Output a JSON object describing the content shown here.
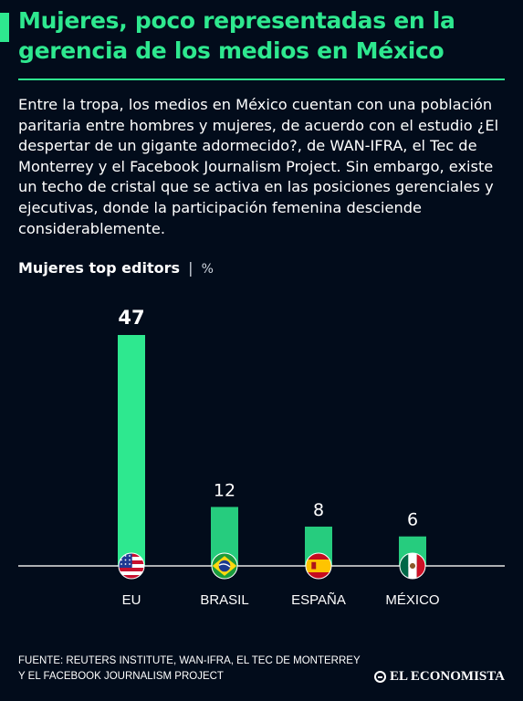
{
  "header": {
    "title": "Mujeres, poco representadas en la gerencia de los medios en México"
  },
  "intro": {
    "text": "Entre la tropa, los medios en México cuentan con una población paritaria entre hombres y mujeres, de acuerdo con el estudio ¿El despertar de un gigante adormecido?, de WAN-IFRA, el Tec de Monterrey y el Facebook Journalism Project. Sin embargo, existe un techo de cristal que se activa en las posiciones gerenciales y ejecutivas, donde la participación femenina desciende considerablemente."
  },
  "chart_header": {
    "title": "Mujeres top editors",
    "separator": "|",
    "unit": "%"
  },
  "chart_data": {
    "type": "bar",
    "title": "Mujeres top editors",
    "ylabel": "%",
    "categories": [
      "EU",
      "BRASIL",
      "ESPAÑA",
      "MÉXICO"
    ],
    "values": [
      47,
      12,
      8,
      6
    ],
    "value_labels": [
      "47",
      "12",
      "8",
      "6"
    ],
    "flags": [
      "usa-flag-icon",
      "brazil-flag-icon",
      "spain-flag-icon",
      "mexico-flag-icon"
    ],
    "highlight_index": 0,
    "grid": false,
    "legend": "none"
  },
  "colors": {
    "background": "#020c1b",
    "accent": "#2ee88f",
    "bar_highlight": "#2ee88f",
    "bar_default": "#26cc7e",
    "baseline": "#e6e6e6",
    "text": "#ffffff"
  },
  "footer": {
    "source_line1": "FUENTE: REUTERS INSTITUTE, WAN-IFRA, EL TEC DE MONTERREY",
    "source_line2": "Y EL FACEBOOK JOURNALISM PROJECT",
    "logo_text": "EL ECONOMISTA"
  }
}
